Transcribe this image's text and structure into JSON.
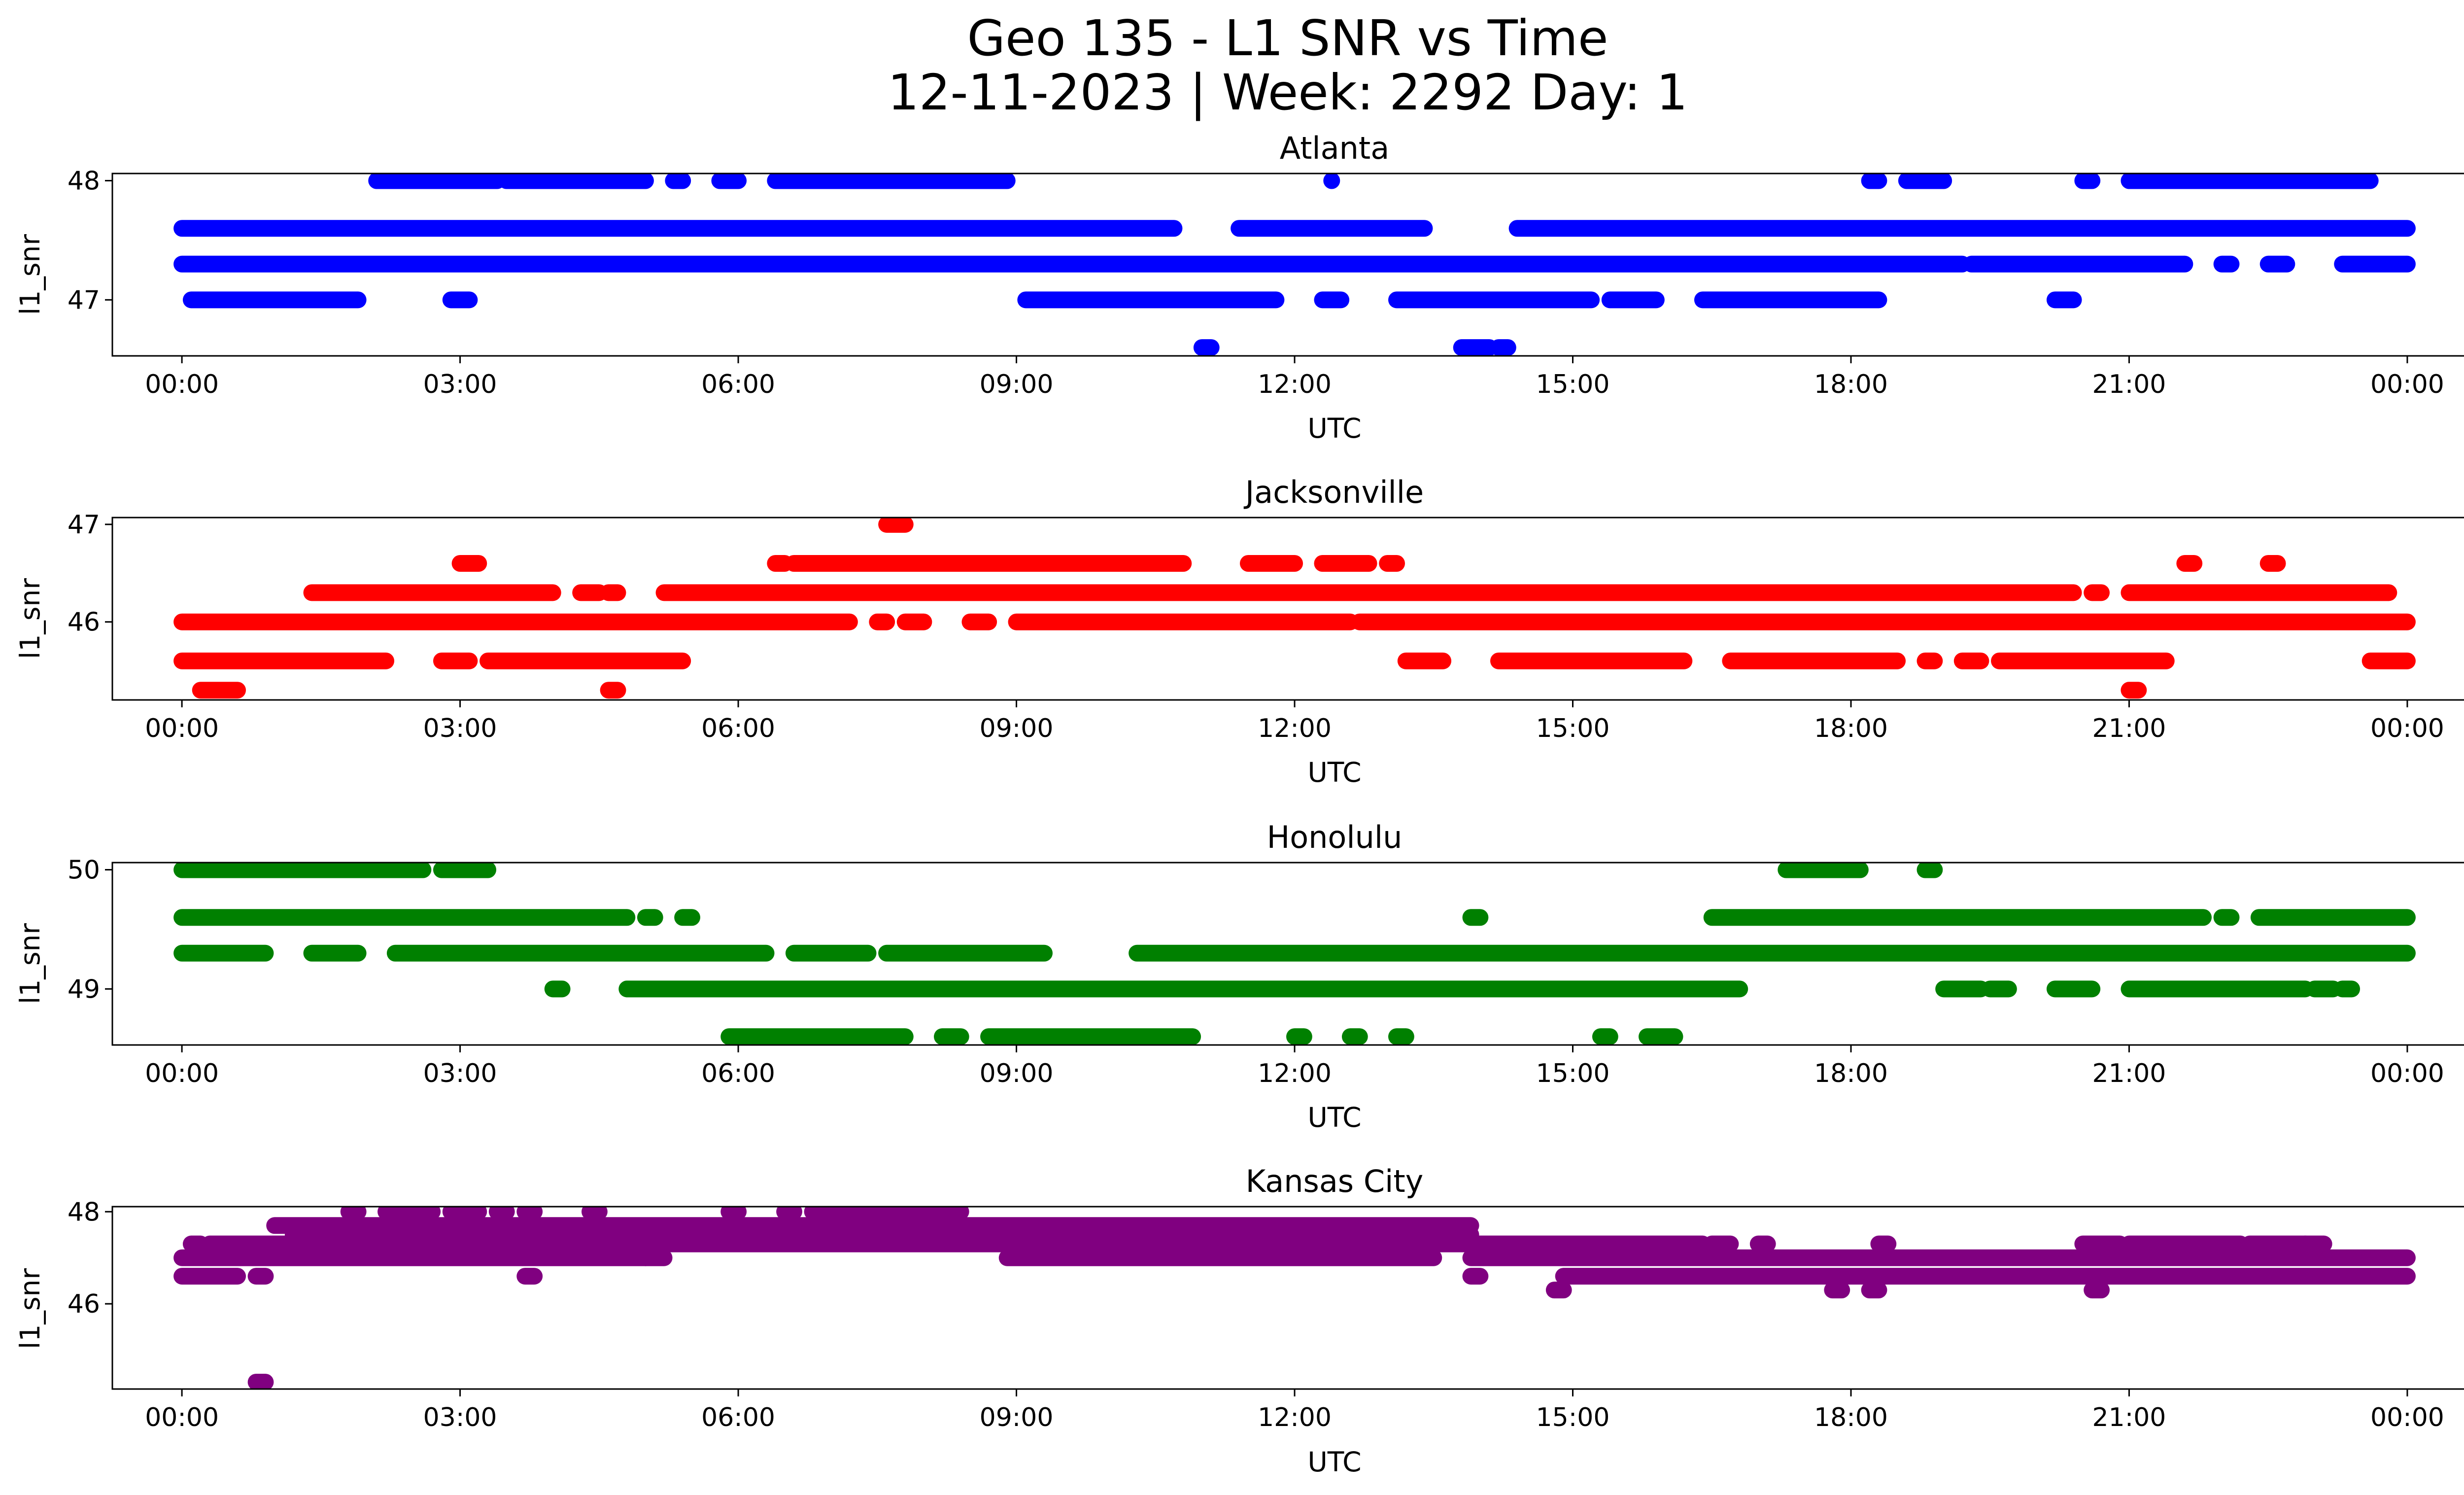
{
  "figure": {
    "title_line1": "Geo 135 - L1 SNR vs Time",
    "title_line2": "12-11-2023 | Week: 2292 Day: 1"
  },
  "chart_data": [
    {
      "type": "scatter",
      "title": "Atlanta",
      "color": "#0000ff",
      "xlabel": "UTC",
      "ylabel": "l1_snr",
      "xlim_hours": [
        -0.75,
        25.6
      ],
      "ylim": [
        46.53,
        48.06
      ],
      "x_tick_labels": [
        "00:00",
        "03:00",
        "06:00",
        "09:00",
        "12:00",
        "15:00",
        "18:00",
        "21:00",
        "00:00"
      ],
      "y_ticks": [
        47,
        48
      ],
      "bands": [
        {
          "y": 48.0,
          "segments": [
            [
              2.1,
              3.4
            ],
            [
              3.5,
              5.0
            ],
            [
              5.3,
              5.4
            ],
            [
              5.8,
              6.0
            ],
            [
              6.4,
              8.9
            ]
          ]
        },
        {
          "y": 48.0,
          "segments": [
            [
              12.4,
              12.4
            ],
            [
              18.2,
              18.3
            ],
            [
              18.6,
              19.0
            ],
            [
              20.5,
              20.6
            ],
            [
              21.0,
              23.6
            ]
          ]
        },
        {
          "y": 47.6,
          "segments": [
            [
              0.0,
              10.7
            ],
            [
              11.4,
              13.4
            ],
            [
              14.4,
              24.0
            ]
          ]
        },
        {
          "y": 47.3,
          "segments": [
            [
              0.0,
              19.2
            ],
            [
              19.3,
              21.6
            ],
            [
              22.0,
              22.1
            ],
            [
              22.5,
              22.7
            ],
            [
              23.3,
              24.0
            ]
          ]
        },
        {
          "y": 47.0,
          "segments": [
            [
              0.1,
              1.9
            ],
            [
              2.9,
              3.1
            ],
            [
              9.1,
              11.8
            ],
            [
              12.3,
              12.5
            ],
            [
              13.1,
              15.2
            ],
            [
              15.4,
              15.9
            ],
            [
              16.4,
              18.3
            ],
            [
              20.2,
              20.4
            ]
          ]
        },
        {
          "y": 46.6,
          "segments": [
            [
              11.0,
              11.1
            ],
            [
              13.8,
              14.1
            ],
            [
              14.2,
              14.3
            ]
          ]
        }
      ]
    },
    {
      "type": "scatter",
      "title": "Jacksonville",
      "color": "#ff0000",
      "xlabel": "UTC",
      "ylabel": "l1_snr",
      "xlim_hours": [
        -0.75,
        25.6
      ],
      "ylim": [
        45.2,
        47.07
      ],
      "x_tick_labels": [
        "00:00",
        "03:00",
        "06:00",
        "09:00",
        "12:00",
        "15:00",
        "18:00",
        "21:00",
        "00:00"
      ],
      "y_ticks": [
        46,
        47
      ],
      "bands": [
        {
          "y": 47.0,
          "segments": [
            [
              7.6,
              7.8
            ]
          ]
        },
        {
          "y": 46.6,
          "segments": [
            [
              3.0,
              3.2
            ],
            [
              6.4,
              6.5
            ],
            [
              6.6,
              10.8
            ],
            [
              11.5,
              12.0
            ],
            [
              12.3,
              12.8
            ],
            [
              13.0,
              13.1
            ]
          ]
        },
        {
          "y": 46.6,
          "segments": [
            [
              21.6,
              21.7
            ],
            [
              22.5,
              22.6
            ]
          ]
        },
        {
          "y": 46.3,
          "segments": [
            [
              1.4,
              4.0
            ],
            [
              4.3,
              4.5
            ],
            [
              4.6,
              4.7
            ],
            [
              5.2,
              20.4
            ],
            [
              20.6,
              20.7
            ],
            [
              21.0,
              23.8
            ]
          ]
        },
        {
          "y": 46.0,
          "segments": [
            [
              0.0,
              7.2
            ],
            [
              7.5,
              7.6
            ],
            [
              7.8,
              8.0
            ],
            [
              8.5,
              8.7
            ],
            [
              9.0,
              12.6
            ],
            [
              12.7,
              24.0
            ]
          ]
        },
        {
          "y": 45.6,
          "segments": [
            [
              0.0,
              2.2
            ],
            [
              2.8,
              3.1
            ],
            [
              3.3,
              5.4
            ],
            [
              13.2,
              13.6
            ],
            [
              14.2,
              16.2
            ],
            [
              16.7,
              18.5
            ],
            [
              18.8,
              18.9
            ],
            [
              19.2,
              19.4
            ],
            [
              19.6,
              21.4
            ],
            [
              23.6,
              24.0
            ]
          ]
        },
        {
          "y": 45.3,
          "segments": [
            [
              0.2,
              0.6
            ],
            [
              4.6,
              4.7
            ],
            [
              21.0,
              21.1
            ]
          ]
        }
      ]
    },
    {
      "type": "scatter",
      "title": "Honolulu",
      "color": "#008000",
      "xlabel": "UTC",
      "ylabel": "l1_snr",
      "xlim_hours": [
        -0.75,
        25.6
      ],
      "ylim": [
        48.53,
        50.06
      ],
      "x_tick_labels": [
        "00:00",
        "03:00",
        "06:00",
        "09:00",
        "12:00",
        "15:00",
        "18:00",
        "21:00",
        "00:00"
      ],
      "y_ticks": [
        49,
        50
      ],
      "bands": [
        {
          "y": 50.0,
          "segments": [
            [
              0.0,
              2.6
            ],
            [
              2.8,
              3.3
            ],
            [
              17.3,
              18.1
            ],
            [
              18.8,
              18.9
            ]
          ]
        },
        {
          "y": 49.6,
          "segments": [
            [
              0.0,
              4.8
            ],
            [
              5.0,
              5.1
            ],
            [
              5.4,
              5.5
            ],
            [
              13.9,
              14.0
            ],
            [
              16.5,
              21.8
            ],
            [
              22.0,
              22.1
            ],
            [
              22.4,
              24.0
            ]
          ]
        },
        {
          "y": 49.3,
          "segments": [
            [
              0.0,
              0.9
            ],
            [
              1.4,
              1.9
            ],
            [
              2.3,
              6.3
            ],
            [
              6.6,
              7.4
            ],
            [
              7.6,
              9.3
            ],
            [
              10.3,
              24.0
            ]
          ]
        },
        {
          "y": 49.0,
          "segments": [
            [
              4.0,
              4.1
            ],
            [
              4.8,
              16.8
            ],
            [
              19.0,
              19.4
            ],
            [
              19.5,
              19.7
            ],
            [
              20.2,
              20.6
            ],
            [
              21.0,
              22.9
            ],
            [
              23.0,
              23.2
            ],
            [
              23.3,
              23.4
            ]
          ]
        },
        {
          "y": 48.6,
          "segments": [
            [
              5.9,
              7.8
            ],
            [
              8.2,
              8.4
            ],
            [
              8.7,
              10.9
            ],
            [
              12.0,
              12.1
            ],
            [
              12.6,
              12.7
            ],
            [
              13.1,
              13.2
            ],
            [
              15.3,
              15.4
            ],
            [
              15.8,
              16.1
            ]
          ]
        }
      ]
    },
    {
      "type": "scatter",
      "title": "Kansas City",
      "color": "#800080",
      "xlabel": "UTC",
      "ylabel": "l1_snr",
      "xlim_hours": [
        -0.75,
        25.6
      ],
      "ylim": [
        44.15,
        48.11
      ],
      "x_tick_labels": [
        "00:00",
        "03:00",
        "06:00",
        "09:00",
        "12:00",
        "15:00",
        "18:00",
        "21:00",
        "00:00"
      ],
      "y_ticks": [
        46,
        48
      ],
      "bands": [
        {
          "y": 48.0,
          "segments": [
            [
              1.8,
              1.9
            ],
            [
              2.2,
              2.7
            ],
            [
              2.9,
              3.2
            ],
            [
              3.4,
              3.5
            ],
            [
              3.7,
              3.8
            ],
            [
              4.4,
              4.5
            ],
            [
              5.9,
              6.0
            ],
            [
              6.5,
              6.6
            ],
            [
              6.8,
              8.1
            ],
            [
              8.2,
              8.4
            ]
          ]
        },
        {
          "y": 47.7,
          "segments": [
            [
              1.0,
              13.9
            ]
          ]
        },
        {
          "y": 47.5,
          "segments": [
            [
              1.2,
              13.9
            ]
          ]
        },
        {
          "y": 47.3,
          "segments": [
            [
              0.1,
              0.2
            ],
            [
              0.3,
              16.4
            ],
            [
              16.5,
              16.7
            ],
            [
              17.0,
              17.1
            ],
            [
              18.3,
              18.4
            ],
            [
              20.5,
              20.9
            ],
            [
              21.0,
              22.2
            ],
            [
              22.3,
              22.9
            ],
            [
              22.9,
              23.1
            ]
          ]
        },
        {
          "y": 47.0,
          "segments": [
            [
              0.0,
              5.0
            ],
            [
              5.0,
              5.2
            ],
            [
              8.9,
              13.5
            ],
            [
              13.9,
              24.0
            ]
          ]
        },
        {
          "y": 46.6,
          "segments": [
            [
              0.0,
              0.6
            ],
            [
              0.8,
              0.9
            ],
            [
              3.7,
              3.8
            ],
            [
              13.9,
              14.0
            ],
            [
              14.9,
              24.0
            ]
          ]
        },
        {
          "y": 46.3,
          "segments": [
            [
              14.8,
              14.9
            ],
            [
              17.8,
              17.9
            ],
            [
              18.2,
              18.3
            ],
            [
              20.6,
              20.7
            ]
          ]
        },
        {
          "y": 44.3,
          "segments": [
            [
              0.8,
              0.9
            ]
          ]
        }
      ]
    }
  ]
}
